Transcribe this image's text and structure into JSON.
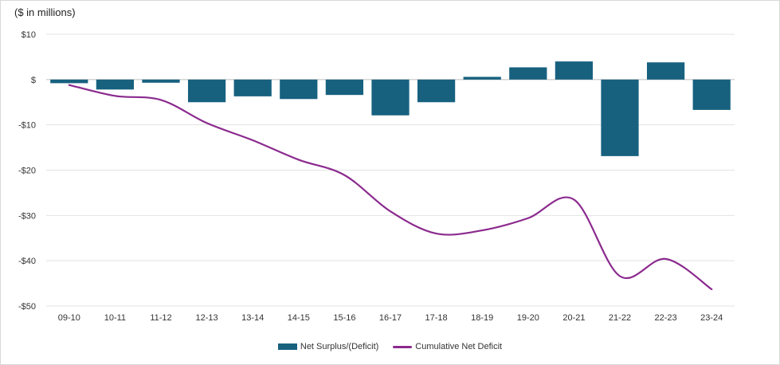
{
  "chart_data": {
    "type": "bar",
    "unit_label": "($ in millions)",
    "categories": [
      "09-10",
      "10-11",
      "11-12",
      "12-13",
      "13-14",
      "14-15",
      "15-16",
      "16-17",
      "17-18",
      "18-19",
      "19-20",
      "20-21",
      "21-22",
      "22-23",
      "23-24"
    ],
    "series": [
      {
        "name": "Net Surplus/(Deficit)",
        "type": "bar",
        "color": "#17617f",
        "values": [
          -0.8,
          -2.2,
          -0.7,
          -5.0,
          -3.7,
          -4.3,
          -3.4,
          -7.9,
          -5.0,
          0.6,
          2.7,
          4.0,
          -16.9,
          3.8,
          -6.7
        ]
      },
      {
        "name": "Cumulative Net Deficit",
        "type": "line",
        "color": "#8b2a8e",
        "values": [
          -1.2,
          -3.6,
          -4.5,
          -9.6,
          -13.4,
          -17.7,
          -21.1,
          -29.1,
          -34.0,
          -33.3,
          -30.6,
          -26.5,
          -43.4,
          -39.6,
          -46.3
        ]
      }
    ],
    "ylim": [
      -50,
      10
    ],
    "yticks": [
      10,
      0,
      -10,
      -20,
      -30,
      -40,
      -50
    ],
    "ytick_labels": [
      "$10",
      "$",
      "-$10",
      "-$20",
      "-$30",
      "-$40",
      "-$50"
    ],
    "grid": true,
    "legend": "bottom"
  }
}
